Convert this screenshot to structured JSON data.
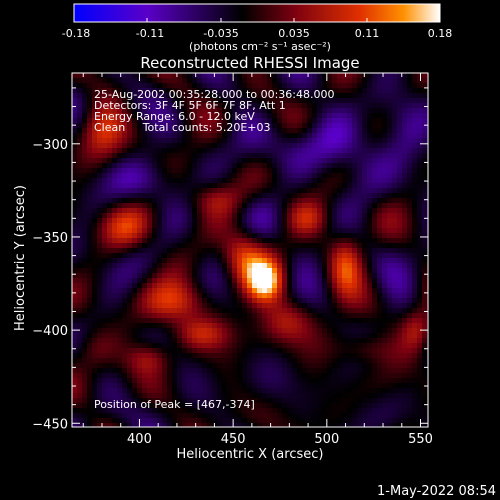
{
  "chart_data": {
    "type": "heatmap",
    "title": "Reconstructed RHESSI Image",
    "xlabel": "Heliocentric X (arcsec)",
    "ylabel": "Heliocentric Y (arcsec)",
    "xlim": [
      364,
      554
    ],
    "ylim": [
      -452,
      -262
    ],
    "x_ticks": [
      400,
      450,
      500,
      550
    ],
    "y_ticks": [
      -300,
      -350,
      -400,
      -450
    ],
    "colorbar": {
      "min": -0.18,
      "max": 0.18,
      "ticks": [
        "-0.18",
        "-0.11",
        "-0.035",
        "0.035",
        "0.11",
        "0.18"
      ],
      "label": "(photons cm⁻² s⁻¹ asec⁻²)",
      "colormap": [
        "#0000ff",
        "#5a00c8",
        "#000000",
        "#7a0010",
        "#e03000",
        "#ff9000",
        "#ffffff"
      ]
    },
    "info_lines": [
      "25-Aug-2002 00:35:28.000 to 00:36:48.000",
      "Detectors: 3F 4F 5F 6F 7F 8F, Att 1",
      "Energy Range: 6.0 - 12.0 keV",
      "Clean     Total counts: 5.20E+03"
    ],
    "peak_text": "Position of Peak = [467,-374]",
    "peak": {
      "x": 467,
      "y": -374
    },
    "sources": [
      {
        "x": 467,
        "y": -374,
        "amp": 0.18,
        "sx": 7,
        "sy": 8
      },
      {
        "x": 455,
        "y": -360,
        "amp": 0.1,
        "sx": 8,
        "sy": 10
      },
      {
        "x": 478,
        "y": -395,
        "amp": 0.08,
        "sx": 10,
        "sy": 8
      },
      {
        "x": 380,
        "y": -292,
        "amp": 0.09,
        "sx": 8,
        "sy": 10
      },
      {
        "x": 392,
        "y": -345,
        "amp": 0.08,
        "sx": 10,
        "sy": 8
      },
      {
        "x": 420,
        "y": -385,
        "amp": 0.1,
        "sx": 12,
        "sy": 8
      },
      {
        "x": 433,
        "y": -402,
        "amp": 0.08,
        "sx": 10,
        "sy": 6
      },
      {
        "x": 510,
        "y": -365,
        "amp": 0.09,
        "sx": 6,
        "sy": 12
      },
      {
        "x": 548,
        "y": -400,
        "amp": 0.08,
        "sx": 6,
        "sy": 8
      },
      {
        "x": 405,
        "y": -415,
        "amp": 0.07,
        "sx": 8,
        "sy": 6
      },
      {
        "x": 490,
        "y": -340,
        "amp": 0.06,
        "sx": 8,
        "sy": 6
      },
      {
        "x": 520,
        "y": -410,
        "amp": 0.06,
        "sx": 10,
        "sy": 6
      },
      {
        "x": 440,
        "y": -330,
        "amp": 0.05,
        "sx": 10,
        "sy": 6
      },
      {
        "x": 375,
        "y": -410,
        "amp": 0.05,
        "sx": 8,
        "sy": 8
      },
      {
        "x": 500,
        "y": -302,
        "amp": -0.06,
        "sx": 20,
        "sy": 10
      },
      {
        "x": 540,
        "y": -300,
        "amp": -0.05,
        "sx": 10,
        "sy": 15
      },
      {
        "x": 400,
        "y": -320,
        "amp": -0.04,
        "sx": 15,
        "sy": 8
      }
    ]
  },
  "footer": {
    "timestamp": "1-May-2022 08:54"
  }
}
